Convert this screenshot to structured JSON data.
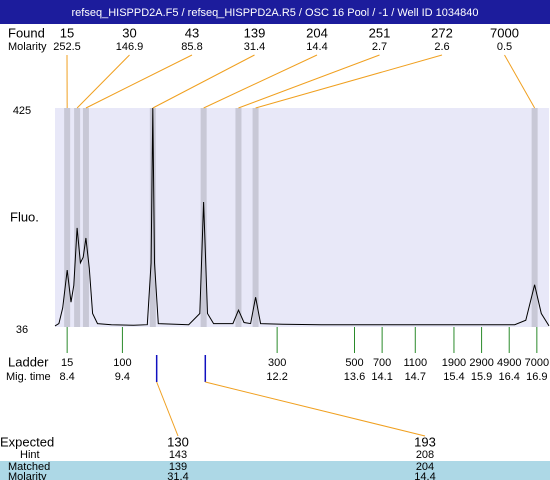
{
  "chart_data": {
    "type": "electropherogram",
    "title": "refseq_HISPPD2A.F5 / refseq_HISPPD2A.R5 / OSC 16 Pool / -1 / Well ID 1034840",
    "xlim": [
      8.18,
      17.12
    ],
    "ylabel": "Fluo.",
    "ylim": [
      36,
      425
    ],
    "yticks": [
      36,
      425
    ],
    "trace": {
      "x": [
        8.18,
        8.25,
        8.32,
        8.4,
        8.47,
        8.52,
        8.58,
        8.64,
        8.69,
        8.74,
        8.8,
        8.86,
        8.95,
        9.2,
        9.6,
        9.85,
        9.92,
        9.95,
        9.98,
        10.05,
        10.6,
        10.8,
        10.87,
        10.94,
        11.05,
        11.4,
        11.5,
        11.6,
        11.72,
        11.81,
        11.9,
        12.3,
        13,
        16.5,
        16.7,
        16.86,
        16.98,
        17.12
      ],
      "y": [
        38,
        42,
        70,
        137,
        80,
        110,
        212,
        150,
        160,
        194,
        140,
        60,
        42,
        40,
        39,
        40,
        150,
        425,
        150,
        42,
        40,
        60,
        258,
        60,
        42,
        42,
        66,
        44,
        42,
        89,
        42,
        41,
        40,
        40,
        48,
        111,
        60,
        38
      ]
    },
    "found": {
      "label": "Found",
      "molarity_label": "Molarity",
      "sizes": [
        15,
        30,
        43,
        139,
        204,
        251,
        272,
        7000
      ],
      "molarity": [
        252.5,
        146.9,
        85.8,
        31.4,
        14.4,
        2.7,
        2.6,
        0.5
      ],
      "times": [
        8.4,
        8.58,
        8.74,
        9.95,
        10.87,
        11.5,
        11.81,
        16.86
      ]
    },
    "ladder": {
      "label": "Ladder",
      "time_label": "Mig. time",
      "sizes": [
        15,
        100,
        300,
        500,
        700,
        1100,
        1900,
        2900,
        4900,
        7000
      ],
      "times": [
        8.4,
        9.4,
        12.2,
        13.6,
        14.1,
        14.7,
        15.4,
        15.9,
        16.4,
        16.9
      ]
    },
    "expected": {
      "label": "Expected",
      "hint_label": "Hint",
      "matched_label": "Matched",
      "molarity_label": "Molarity",
      "sizes": [
        130,
        193
      ],
      "hint": [
        143,
        208
      ],
      "matched": [
        139,
        204
      ],
      "molarity": [
        31.4,
        14.4
      ],
      "times": [
        10.02,
        10.9
      ]
    }
  }
}
